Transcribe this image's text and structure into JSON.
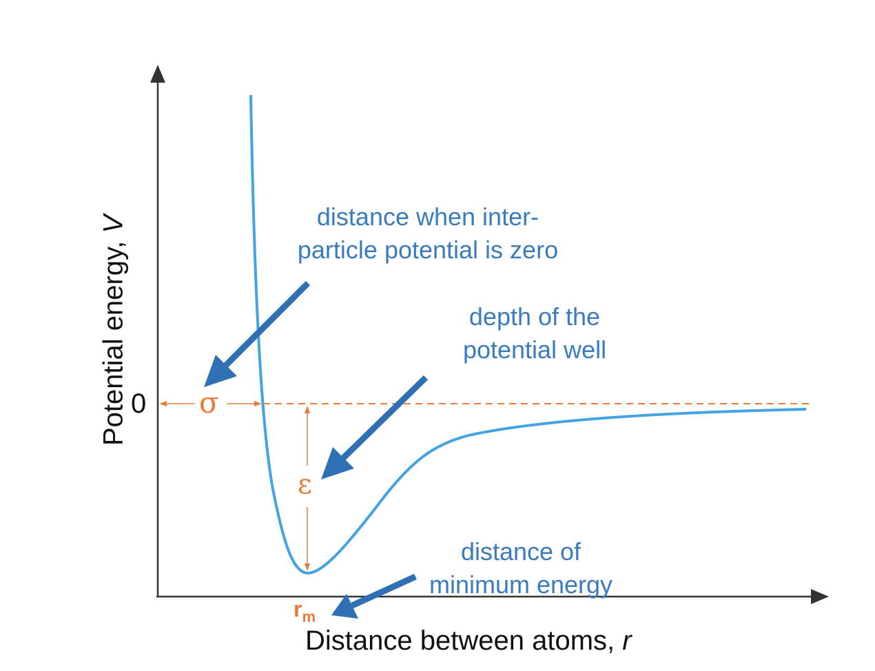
{
  "diagram": {
    "y_axis_label": {
      "text": "Potential energy, ",
      "var": "V"
    },
    "x_axis_label": {
      "text": "Distance between atoms, ",
      "var": "r"
    },
    "zero_tick": "0",
    "sigma_symbol": "σ",
    "epsilon_symbol": "ε",
    "rm_label": {
      "base": "r",
      "sub": "m"
    },
    "annotations": {
      "sigma": [
        "distance when inter-",
        "particle potential is zero"
      ],
      "epsilon": [
        "depth of the",
        "potential well"
      ],
      "rm": [
        "distance of",
        "minimum energy"
      ]
    },
    "colors": {
      "curve": "#44a3e0",
      "arrows": "#2f70b5",
      "annotation_text": "#3a7bbd",
      "symbols": "#e87a3a",
      "axes": "#333333"
    }
  }
}
